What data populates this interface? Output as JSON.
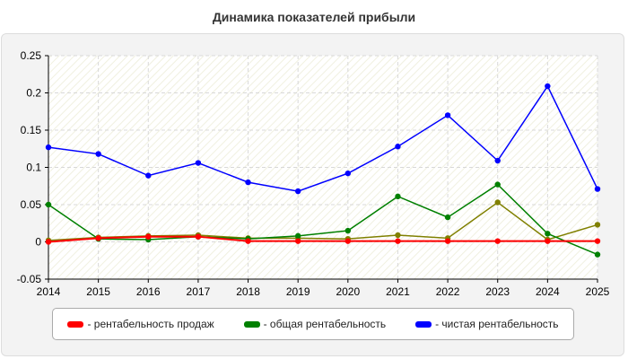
{
  "title": "Динамика показателей прибыли",
  "chart_data": {
    "type": "line",
    "x": [
      "2014",
      "2015",
      "2016",
      "2017",
      "2018",
      "2019",
      "2020",
      "2021",
      "2022",
      "2023",
      "2024",
      "2025"
    ],
    "ylim": [
      -0.05,
      0.25
    ],
    "y_ticks": [
      "-0.05",
      "0",
      "0.05",
      "0.1",
      "0.15",
      "0.2",
      "0.25"
    ],
    "grid": true,
    "legend_position": "bottom",
    "series": [
      {
        "name": "- рентабельность продаж",
        "color": "#ff0000",
        "values": [
          0.0,
          0.005,
          0.007,
          0.007,
          0.001,
          0.001,
          0.001,
          0.001,
          0.001,
          0.001,
          0.001,
          0.001
        ],
        "show_in_legend": true
      },
      {
        "name": "- общая рентабельность",
        "color": "#008000",
        "values": [
          0.05,
          0.004,
          0.003,
          0.007,
          0.004,
          0.008,
          0.015,
          0.061,
          0.033,
          0.077,
          0.011,
          -0.017
        ],
        "show_in_legend": true
      },
      {
        "name": "- чистая рентабельность",
        "color": "#0000ff",
        "values": [
          0.127,
          0.118,
          0.089,
          0.106,
          0.08,
          0.068,
          0.092,
          0.128,
          0.17,
          0.109,
          0.209,
          0.071
        ],
        "show_in_legend": true
      },
      {
        "name": "",
        "color": "#808000",
        "values": [
          0.002,
          0.006,
          0.008,
          0.009,
          0.005,
          0.005,
          0.004,
          0.009,
          0.005,
          0.053,
          0.003,
          0.023
        ],
        "show_in_legend": false
      }
    ]
  }
}
